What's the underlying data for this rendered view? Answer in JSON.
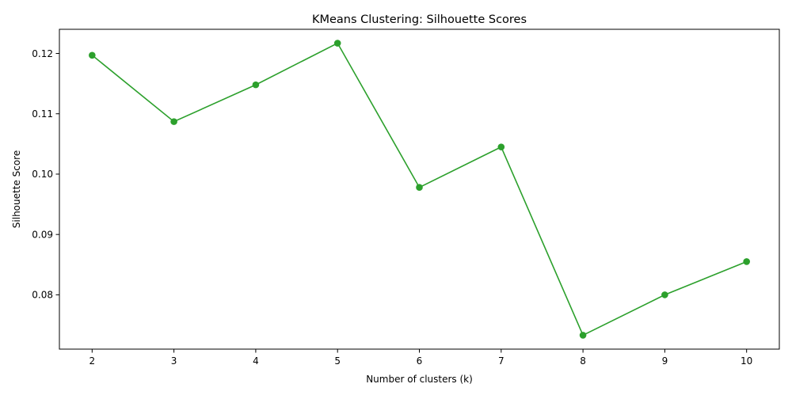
{
  "chart_data": {
    "type": "line",
    "title": "KMeans Clustering: Silhouette Scores",
    "xlabel": "Number of clusters (k)",
    "ylabel": "Silhouette Score",
    "x": [
      2,
      3,
      4,
      5,
      6,
      7,
      8,
      9,
      10
    ],
    "series": [
      {
        "values": [
          0.1197,
          0.1087,
          0.1148,
          0.1217,
          0.0978,
          0.1045,
          0.0733,
          0.08,
          0.0855
        ],
        "color": "#2ca02c",
        "marker": "circle"
      }
    ],
    "xticks": [
      "2",
      "3",
      "4",
      "5",
      "6",
      "7",
      "8",
      "9",
      "10"
    ],
    "yticks": [
      "0.08",
      "0.09",
      "0.10",
      "0.11",
      "0.12"
    ],
    "xlim": [
      1.6,
      10.4
    ],
    "ylim": [
      0.071,
      0.124
    ],
    "grid": false,
    "legend": "none"
  }
}
